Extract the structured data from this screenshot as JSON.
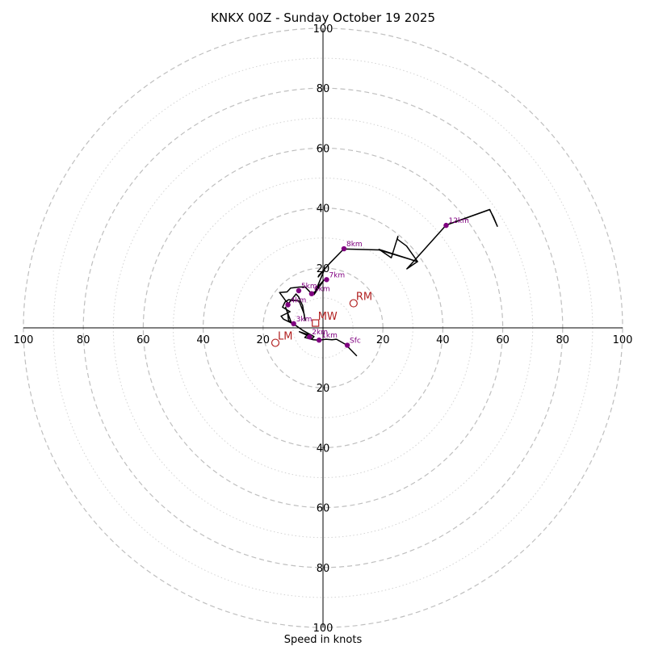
{
  "chart_data": {
    "type": "hodograph",
    "title": "KNKX 00Z - Sunday October 19 2025",
    "xlabel": "Speed in knots",
    "range": [
      -100,
      100
    ],
    "ring_step_major": 20,
    "ring_step_minor": 10,
    "tick_labels": {
      "x": [
        {
          "value": -100,
          "label": "100"
        },
        {
          "value": -80,
          "label": "80"
        },
        {
          "value": -60,
          "label": "60"
        },
        {
          "value": -40,
          "label": "40"
        },
        {
          "value": -20,
          "label": "20"
        },
        {
          "value": 20,
          "label": "20"
        },
        {
          "value": 40,
          "label": "40"
        },
        {
          "value": 60,
          "label": "60"
        },
        {
          "value": 80,
          "label": "80"
        },
        {
          "value": 100,
          "label": "100"
        }
      ],
      "y": [
        {
          "value": 100,
          "label": "100"
        },
        {
          "value": 80,
          "label": "80"
        },
        {
          "value": 60,
          "label": "60"
        },
        {
          "value": 40,
          "label": "40"
        },
        {
          "value": 20,
          "label": "20"
        },
        {
          "value": -20,
          "label": "20"
        },
        {
          "value": -40,
          "label": "40"
        },
        {
          "value": -60,
          "label": "60"
        },
        {
          "value": -80,
          "label": "80"
        },
        {
          "value": -100,
          "label": "100"
        }
      ]
    },
    "hodograph_trace": [
      [
        11.3,
        -9.4
      ],
      [
        7.5,
        -5.5
      ],
      [
        4.5,
        -3.8
      ],
      [
        3.0,
        -4.0
      ],
      [
        1.0,
        -3.8
      ],
      [
        -1.3,
        -4.1
      ],
      [
        -3.2,
        -4.0
      ],
      [
        -6.1,
        -3.2
      ],
      [
        -5.0,
        -2.2
      ],
      [
        -7.9,
        -1.3
      ],
      [
        -5.5,
        -2.4
      ],
      [
        -3.5,
        -3.5
      ],
      [
        -3.0,
        -2.9
      ],
      [
        -6.5,
        -1.0
      ],
      [
        -10.0,
        1.4
      ],
      [
        -9.5,
        0.8
      ],
      [
        -11.5,
        2.5
      ],
      [
        -11.8,
        4.9
      ],
      [
        -12.5,
        6.9
      ],
      [
        -10.5,
        1.6
      ],
      [
        -13.2,
        2.9
      ],
      [
        -14.0,
        3.9
      ],
      [
        -11.0,
        5.4
      ],
      [
        -13.5,
        6.9
      ],
      [
        -12.7,
        8.6
      ],
      [
        -11.5,
        9.4
      ],
      [
        -8.0,
        9.0
      ],
      [
        -6.3,
        4.7
      ],
      [
        -6.0,
        2.6
      ],
      [
        -6.8,
        7.4
      ],
      [
        -8.1,
        10.3
      ],
      [
        -9.0,
        11.3
      ],
      [
        -11.5,
        8.1
      ],
      [
        -12.5,
        9.1
      ],
      [
        -14.5,
        11.8
      ],
      [
        -12.0,
        12.0
      ],
      [
        -10.8,
        13.3
      ],
      [
        -8.0,
        13.6
      ],
      [
        -6.0,
        13.7
      ],
      [
        -3.8,
        11.4
      ],
      [
        -2.3,
        12.3
      ],
      [
        -1.5,
        14.0
      ],
      [
        0.3,
        15.9
      ],
      [
        -3.0,
        11.1
      ],
      [
        0.5,
        19.5
      ],
      [
        -1.6,
        17.0
      ],
      [
        -1.4,
        17.5
      ],
      [
        2.2,
        21.5
      ],
      [
        6.6,
        26.0
      ],
      [
        7.4,
        26.3
      ],
      [
        18.7,
        26.0
      ],
      [
        31.6,
        22.1
      ],
      [
        27.9,
        27.3
      ],
      [
        24.8,
        29.6
      ],
      [
        25.0,
        30.5
      ],
      [
        22.8,
        23.4
      ],
      [
        18.7,
        26.2
      ],
      [
        31.5,
        22.1
      ],
      [
        28.0,
        19.7
      ],
      [
        41.1,
        34.3
      ],
      [
        55.6,
        39.5
      ],
      [
        56.9,
        37.0
      ],
      [
        58.2,
        33.9
      ],
      [
        55.7,
        39.5
      ],
      [
        41.2,
        34.3
      ]
    ],
    "height_markers": [
      {
        "label": "Sfc",
        "u": 8.1,
        "v": -5.8
      },
      {
        "label": "1km",
        "u": -1.3,
        "v": -4.1
      },
      {
        "label": "2km",
        "u": -4.5,
        "v": -3.0
      },
      {
        "label": "3km",
        "u": -9.8,
        "v": 1.4
      },
      {
        "label": "4km",
        "u": -11.7,
        "v": 7.7
      },
      {
        "label": "5km",
        "u": -8.1,
        "v": 12.4
      },
      {
        "label": "6km",
        "u": -3.8,
        "v": 11.4
      },
      {
        "label": "7km",
        "u": 1.2,
        "v": 16.1
      },
      {
        "label": "8km",
        "u": 7.0,
        "v": 26.4
      },
      {
        "label": "12km",
        "u": 41.1,
        "v": 34.2
      }
    ],
    "storm_motion": [
      {
        "label": "RM",
        "u": 10.2,
        "v": 8.2,
        "marker": "circle"
      },
      {
        "label": "LM",
        "u": -15.9,
        "v": -5.0,
        "marker": "circle"
      },
      {
        "label": "MW",
        "u": -2.5,
        "v": 1.6,
        "marker": "square"
      }
    ]
  },
  "colors": {
    "trace": "#000000",
    "marker": "#800080",
    "storm": "#b22222",
    "ring_major": "#bfbfbf",
    "ring_minor": "#d3d3d3"
  }
}
